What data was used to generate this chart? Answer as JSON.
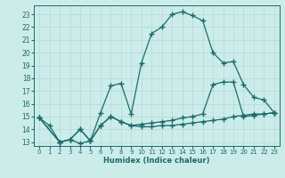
{
  "xlabel": "Humidex (Indice chaleur)",
  "bg_color": "#ccecea",
  "grid_color": "#b8dedd",
  "line_color": "#1a6b6b",
  "xlim": [
    -0.5,
    23.5
  ],
  "ylim": [
    12.7,
    23.7
  ],
  "xticks": [
    0,
    1,
    2,
    3,
    4,
    5,
    6,
    7,
    8,
    9,
    10,
    11,
    12,
    13,
    14,
    15,
    16,
    17,
    18,
    19,
    20,
    21,
    22,
    23
  ],
  "yticks": [
    13,
    14,
    15,
    16,
    17,
    18,
    19,
    20,
    21,
    22,
    23
  ],
  "line1_x": [
    0,
    1,
    2,
    3,
    4,
    5,
    6,
    7,
    8,
    9,
    10,
    11,
    12,
    13,
    14,
    15,
    16,
    17,
    18,
    19,
    20,
    21,
    22,
    23
  ],
  "line1_y": [
    14.9,
    14.3,
    13.0,
    13.2,
    12.9,
    13.1,
    15.3,
    17.4,
    17.6,
    15.2,
    19.2,
    21.5,
    22.0,
    23.0,
    23.2,
    22.9,
    22.5,
    20.0,
    19.2,
    19.3,
    17.5,
    16.5,
    16.3,
    15.3
  ],
  "line2_x": [
    0,
    2,
    3,
    4,
    5,
    6,
    7,
    8,
    9,
    10,
    11,
    12,
    13,
    14,
    15,
    16,
    17,
    18,
    19,
    20,
    21,
    22,
    23
  ],
  "line2_y": [
    14.9,
    13.0,
    13.2,
    14.0,
    13.1,
    14.3,
    15.0,
    14.6,
    14.3,
    14.4,
    14.5,
    14.6,
    14.7,
    14.9,
    15.0,
    15.2,
    17.5,
    17.7,
    17.7,
    15.0,
    15.1,
    15.2,
    15.3
  ],
  "line3_x": [
    0,
    2,
    3,
    4,
    5,
    6,
    7,
    8,
    9,
    10,
    11,
    12,
    13,
    14,
    15,
    16,
    17,
    18,
    19,
    20,
    21,
    22,
    23
  ],
  "line3_y": [
    14.9,
    13.0,
    13.2,
    14.0,
    13.1,
    14.3,
    15.0,
    14.6,
    14.3,
    14.2,
    14.2,
    14.3,
    14.3,
    14.4,
    14.5,
    14.6,
    14.7,
    14.8,
    15.0,
    15.1,
    15.2,
    15.2,
    15.3
  ]
}
